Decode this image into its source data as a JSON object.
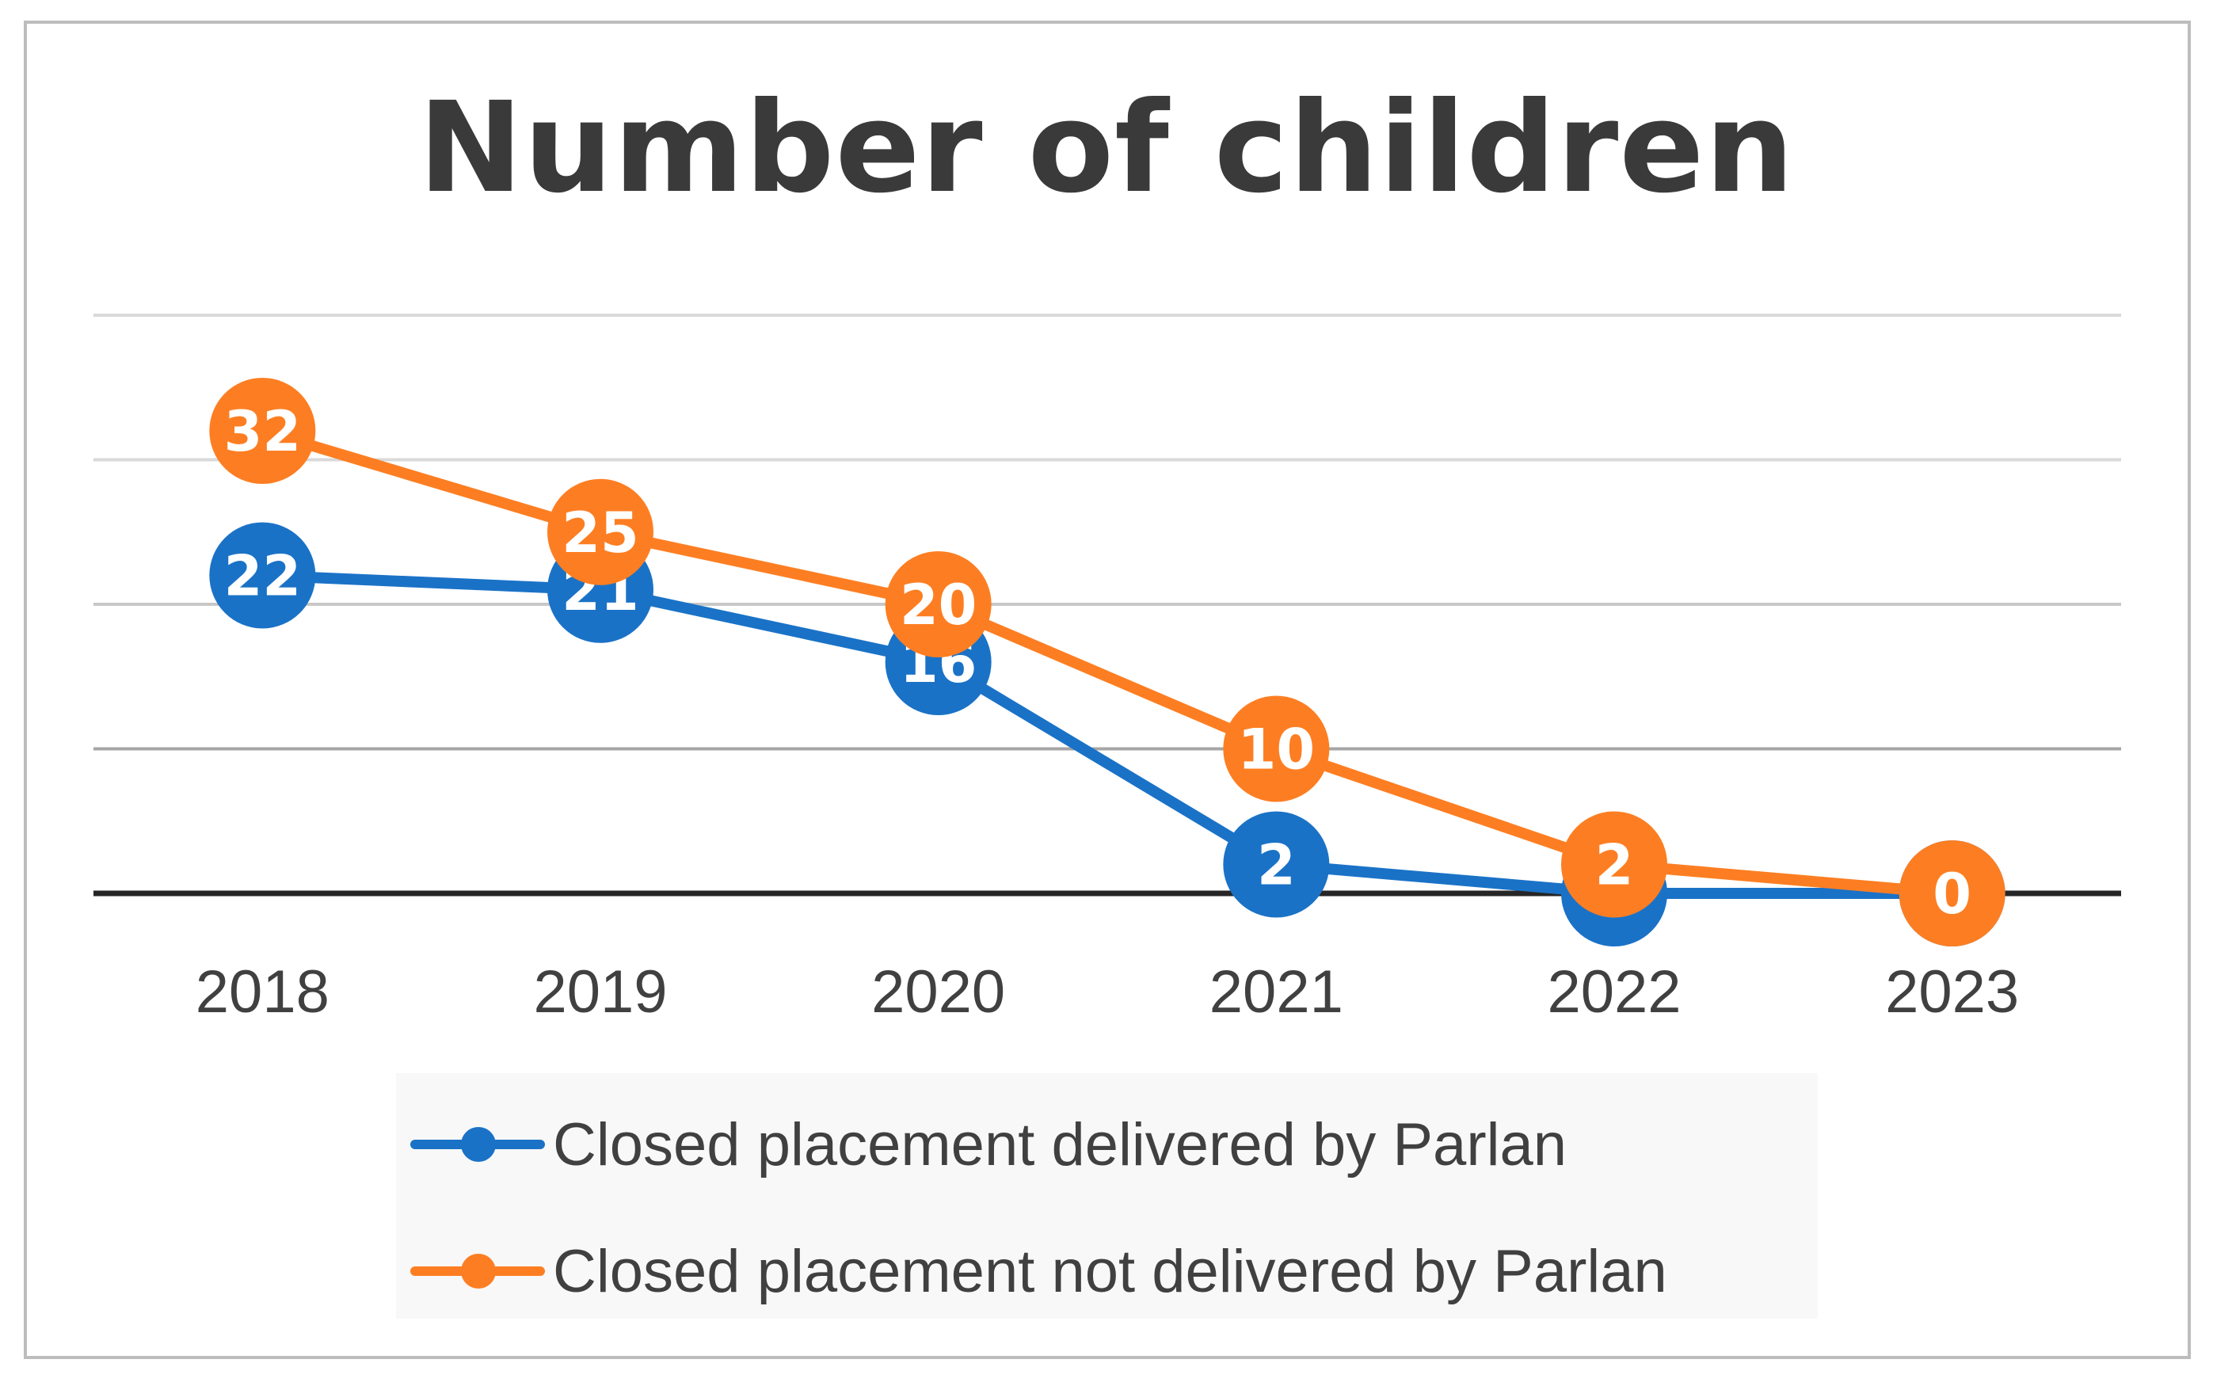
{
  "chart_data": {
    "type": "line",
    "title": "Number of children",
    "categories": [
      "2018",
      "2019",
      "2020",
      "2021",
      "2022",
      "2023"
    ],
    "ylim": [
      0,
      40
    ],
    "grid": true,
    "legend_position": "bottom",
    "series": [
      {
        "name": "Closed placement delivered by Parlan",
        "values": [
          22,
          21,
          16,
          2,
          0,
          0
        ],
        "labels": [
          "22",
          "21",
          "16",
          "2",
          "0",
          ""
        ],
        "color": "#1a72c7"
      },
      {
        "name": "Closed placement not delivered by Parlan",
        "values": [
          32,
          25,
          20,
          10,
          2,
          0
        ],
        "labels": [
          "32",
          "25",
          "20",
          "10",
          "2",
          "0"
        ],
        "color": "#fd7e22"
      }
    ]
  }
}
